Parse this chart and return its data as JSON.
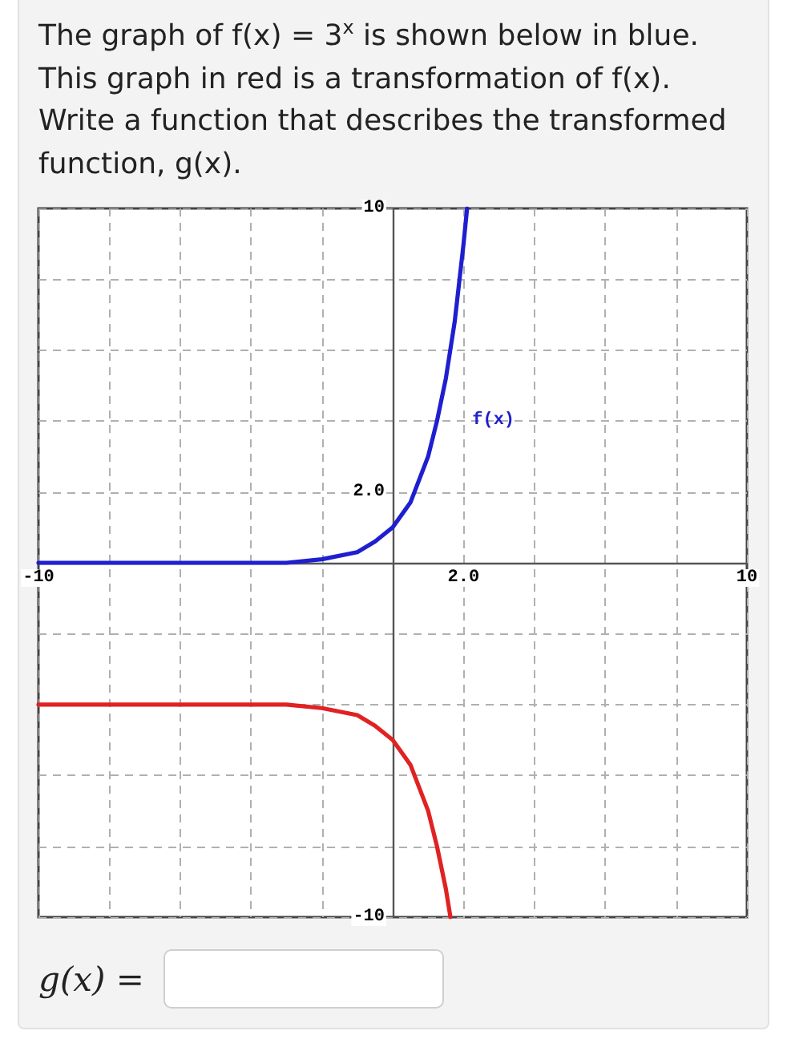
{
  "chart_data": {
    "type": "line",
    "title": "The graph of f(x) = 3$^{x}$ is shown below in blue. This graph in red is a transformation of f(x). Write a function that describes the transformed function, g(x).",
    "annotations": [
      "g(x) ="
    ],
    "series": [
      {
        "name": "f(x)",
        "color": "#1f1fd0",
        "x": [
          -10,
          -3,
          -2,
          -1,
          -0.5,
          0,
          0.5,
          1,
          1.25,
          1.5,
          1.75,
          2,
          2.1
        ],
        "values": [
          0,
          0,
          0.1,
          0.3,
          0.6,
          1,
          1.7,
          3,
          4,
          5.2,
          6.8,
          9,
          10
        ]
      },
      {
        "color": "#e02222",
        "x": [
          -10,
          -3,
          -2,
          -1,
          -0.5,
          0,
          0.5,
          1,
          1.25,
          1.5,
          1.63
        ],
        "values": [
          -4,
          -4,
          -4.1,
          -4.3,
          -4.6,
          -5,
          -5.7,
          -7,
          -8,
          -9.2,
          -10
        ]
      }
    ],
    "xlim": [
      -10,
      10
    ],
    "xticks": [
      -10,
      {
        "value": -8,
        "label": null
      },
      {
        "value": -6,
        "label": null
      },
      {
        "value": -4,
        "label": null
      },
      {
        "value": -2,
        "label": null
      },
      {
        "value": 0,
        "label": null
      },
      {
        "value": 2,
        "label": "2.0"
      },
      {
        "value": 4,
        "label": null
      },
      {
        "value": 6,
        "label": null
      },
      {
        "value": 8,
        "label": null
      },
      10
    ],
    "ylim": [
      -10,
      10
    ],
    "yticks": [
      -10,
      {
        "value": -8,
        "label": null
      },
      {
        "value": -6,
        "label": null
      },
      {
        "value": -4,
        "label": null
      },
      {
        "value": -2,
        "label": null
      },
      {
        "value": 0,
        "label": null
      },
      {
        "value": 2,
        "label": "2.0"
      },
      {
        "value": 4,
        "label": null
      },
      {
        "value": 6,
        "label": null
      },
      {
        "value": 8,
        "label": null
      },
      10
    ],
    "grid": true,
    "marker": "none",
    "line_style": "solid"
  }
}
